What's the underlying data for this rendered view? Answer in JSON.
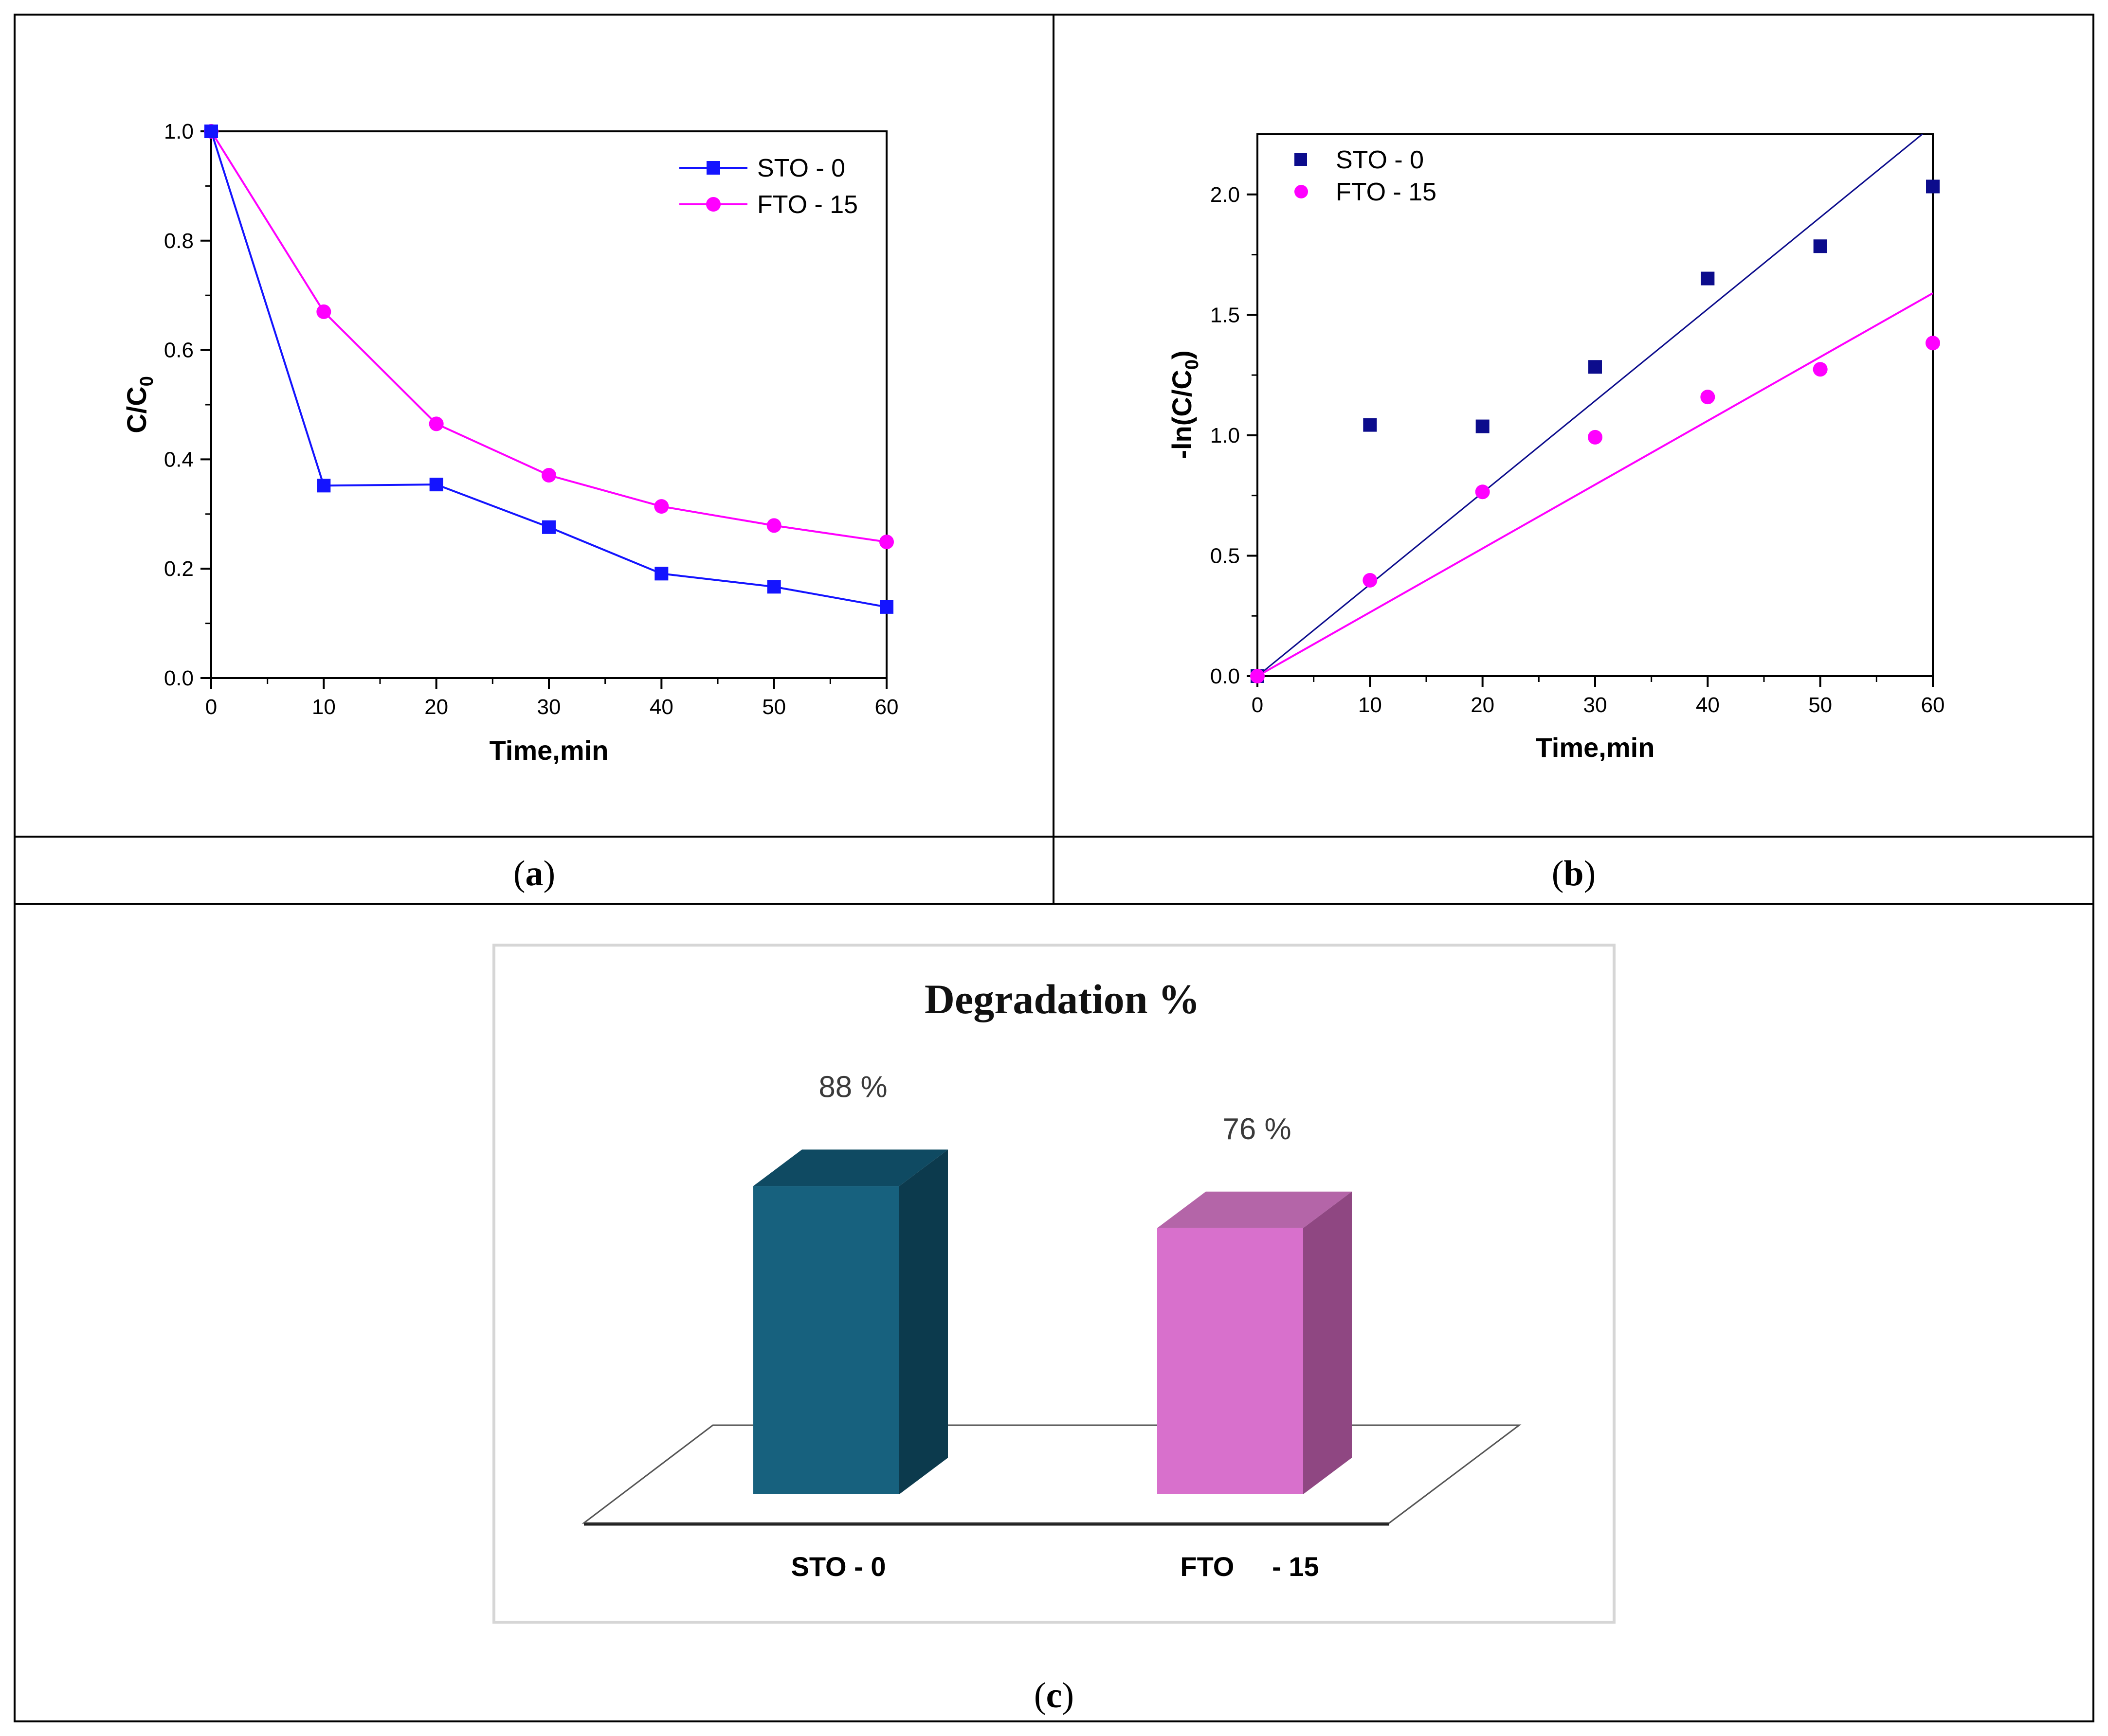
{
  "panel_labels": {
    "a": "a",
    "b": "b",
    "c": "c"
  },
  "colors": {
    "sto_line": "#1414ff",
    "sto_scatter": "#0c0c8c",
    "fto": "#ff00ff",
    "bar_sto_front": "#17617e",
    "bar_sto_top": "#0f4a62",
    "bar_sto_side": "#0c3a4d",
    "bar_fto_front": "#d870cc",
    "bar_fto_top": "#b465a8",
    "bar_fto_side": "#8f4782"
  },
  "chart_data": [
    {
      "type": "line",
      "panel": "a",
      "xlabel": "Time,min",
      "ylabel": "C/C",
      "ylabel_sub": "0",
      "xlim": [
        0,
        60
      ],
      "ylim": [
        0,
        1.0
      ],
      "xticks": [
        0,
        10,
        20,
        30,
        40,
        50,
        60
      ],
      "yticks": [
        0.0,
        0.2,
        0.4,
        0.6,
        0.8,
        1.0
      ],
      "ytick_labels": [
        "0.0",
        "0.2",
        "0.4",
        "0.6",
        "0.8",
        "1.0"
      ],
      "legend_position": "top-right",
      "series": [
        {
          "name": "STO - 0",
          "x": [
            0,
            10,
            20,
            30,
            40,
            50,
            60
          ],
          "y": [
            1.0,
            0.352,
            0.354,
            0.276,
            0.191,
            0.167,
            0.13
          ]
        },
        {
          "name": "FTO - 15",
          "x": [
            0,
            10,
            20,
            30,
            40,
            50,
            60
          ],
          "y": [
            1.0,
            0.67,
            0.465,
            0.371,
            0.314,
            0.279,
            0.249
          ]
        }
      ]
    },
    {
      "type": "scatter",
      "panel": "b",
      "xlabel": "Time,min",
      "ylabel": "-ln(C/C",
      "ylabel_sub": "0",
      "ylabel_end": ")",
      "xlim": [
        0,
        60
      ],
      "ylim": [
        0,
        2.25
      ],
      "xticks": [
        0,
        10,
        20,
        30,
        40,
        50,
        60
      ],
      "yticks": [
        0.0,
        0.5,
        1.0,
        1.5,
        2.0
      ],
      "ytick_labels": [
        "0.0",
        "0.5",
        "1.0",
        "1.5",
        "2.0"
      ],
      "legend_position": "top-left",
      "series": [
        {
          "name": "STO - 0",
          "x": [
            0,
            10,
            20,
            30,
            40,
            50,
            60
          ],
          "y": [
            0.0,
            1.043,
            1.037,
            1.284,
            1.651,
            1.785,
            2.033
          ],
          "fit_slope": 0.0381
        },
        {
          "name": "FTO - 15",
          "x": [
            0,
            10,
            20,
            30,
            40,
            50,
            60
          ],
          "y": [
            0.0,
            0.398,
            0.765,
            0.992,
            1.159,
            1.274,
            1.383
          ],
          "fit_slope": 0.0265
        }
      ]
    },
    {
      "type": "bar",
      "panel": "c",
      "title": "Degradation %",
      "categories": [
        "STO - 0",
        "FTO     - 15"
      ],
      "values": [
        88,
        76
      ],
      "value_labels": [
        "88 %",
        "76 %"
      ]
    }
  ]
}
